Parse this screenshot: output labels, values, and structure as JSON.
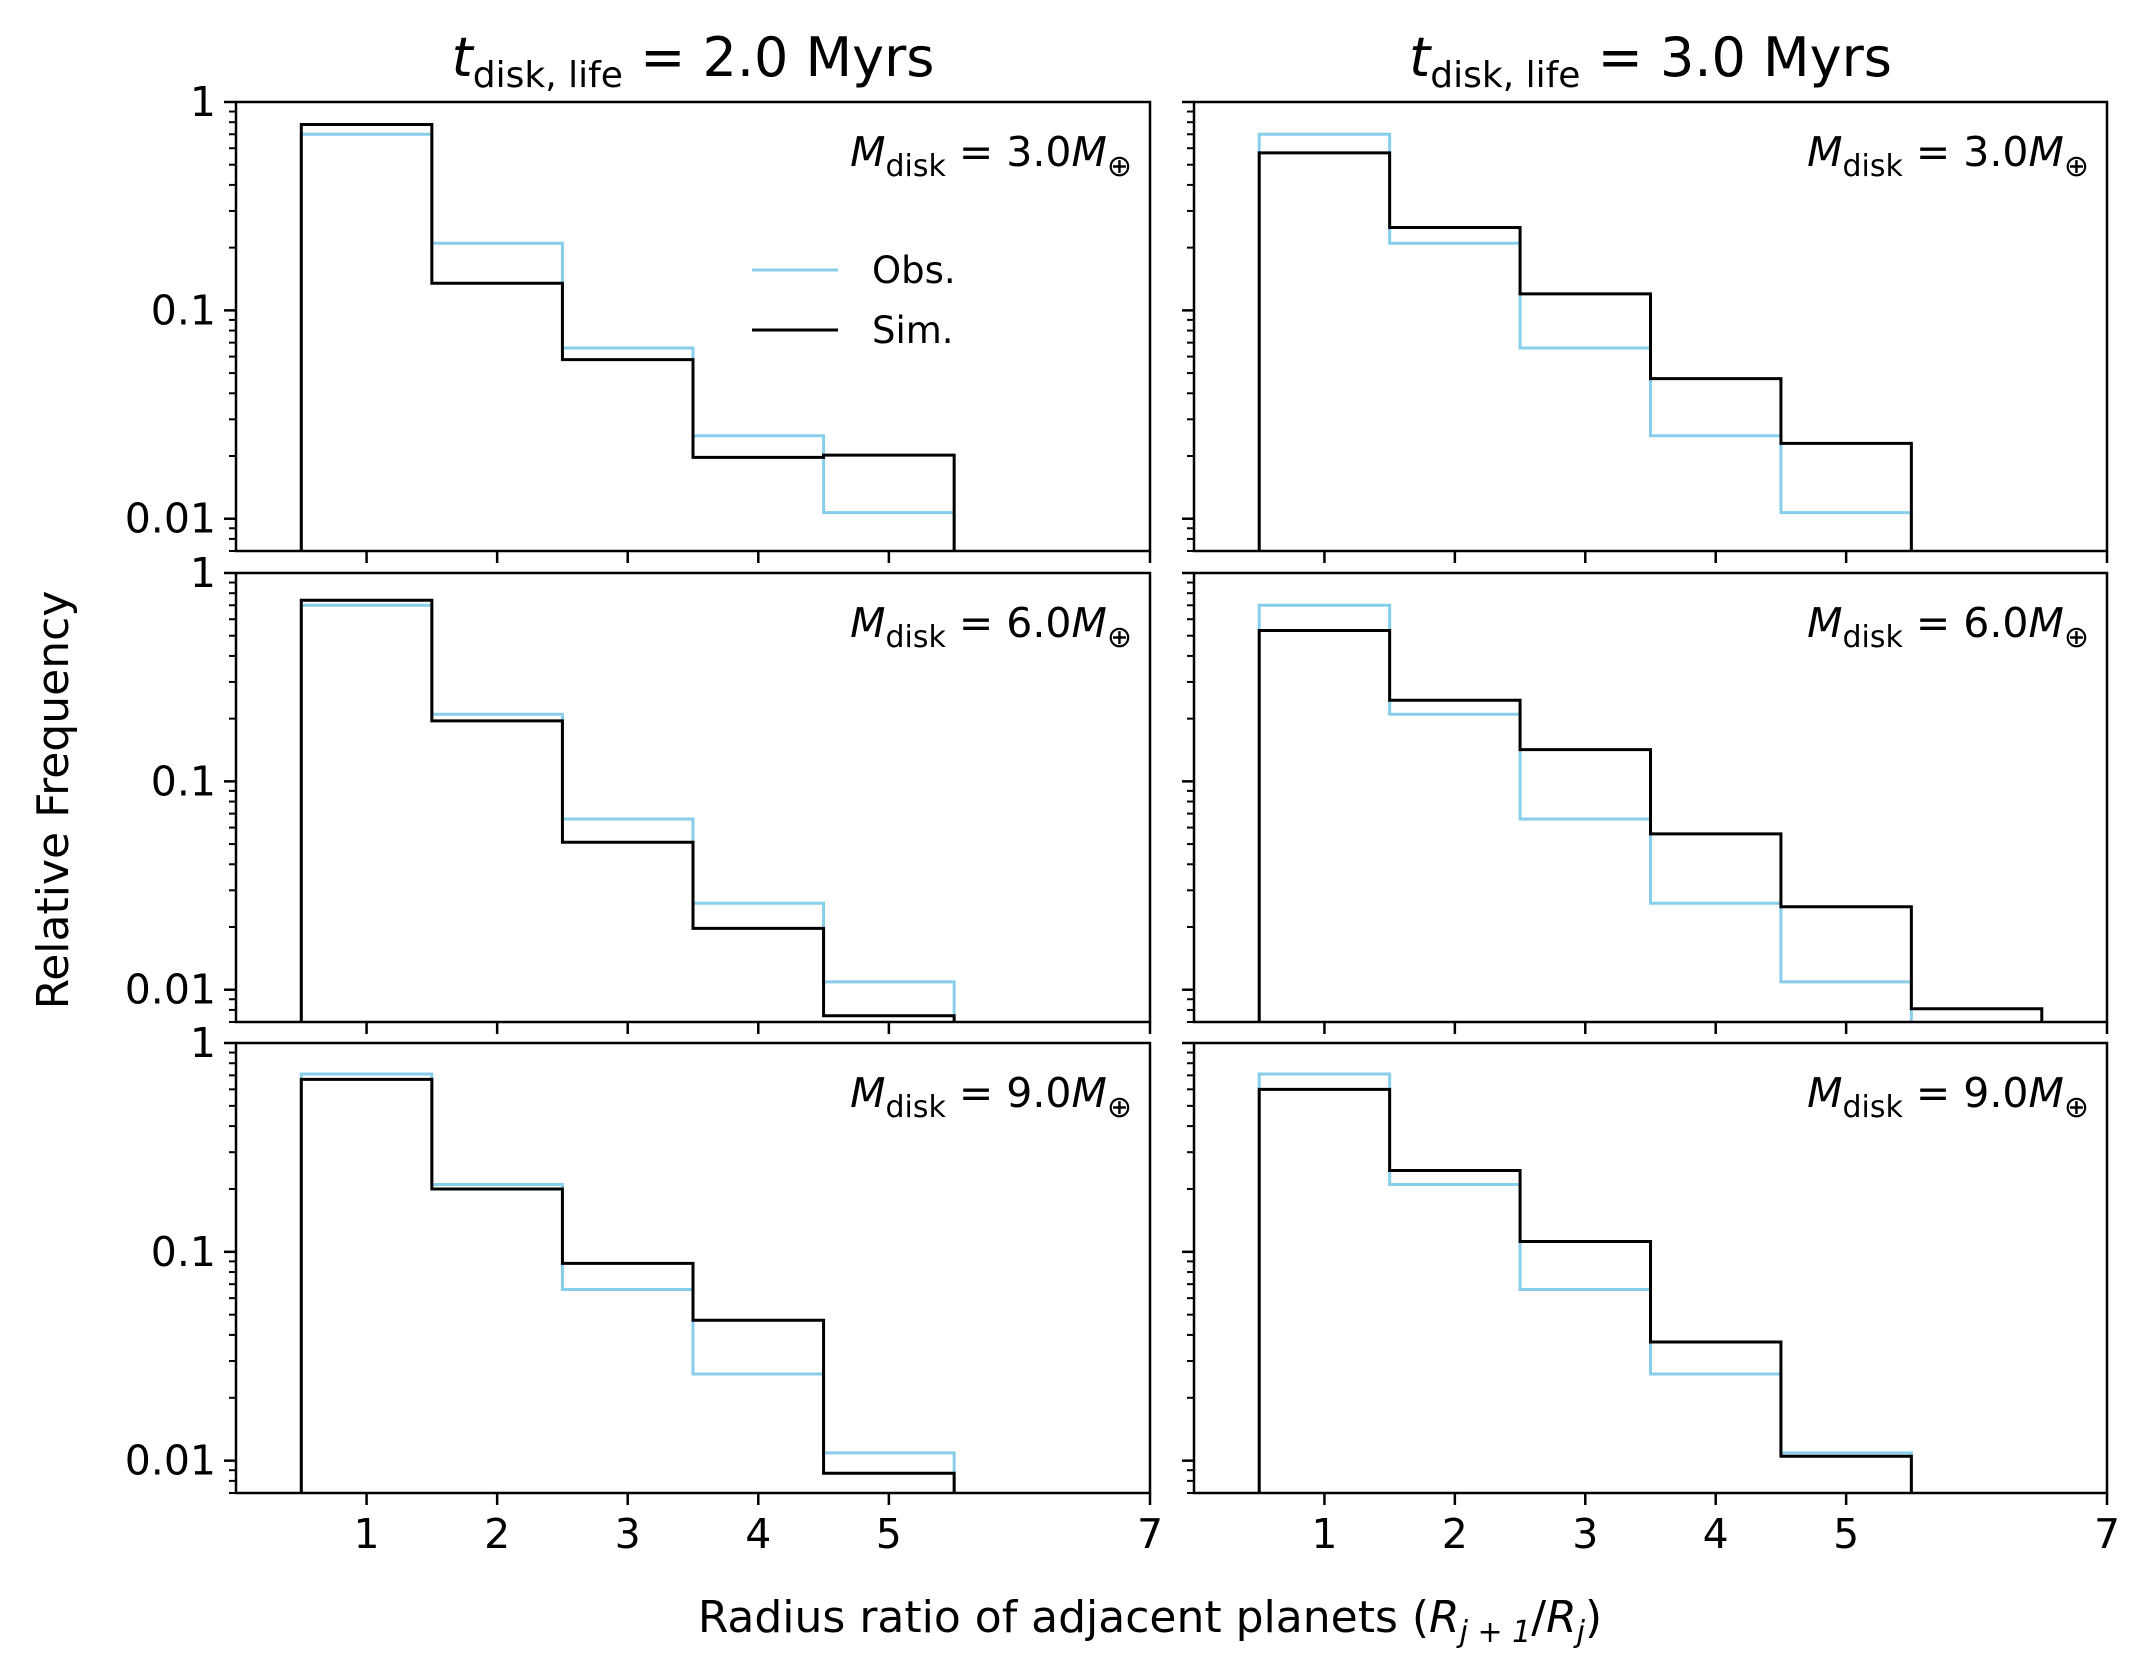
{
  "figure": {
    "x_label_text": "Radius ratio of adjacent planets (",
    "x_label_var_1": "R",
    "x_label_sub_1": "j + 1",
    "x_label_slash": "/",
    "x_label_var_2": "R",
    "x_label_sub_2": "j",
    "x_label_close": ")",
    "y_label": "Relative Frequency",
    "legend": {
      "obs": "Obs.",
      "sim": "Sim."
    },
    "colors": {
      "obs": "#87CEEB",
      "sim": "#000000",
      "axes": "#000000"
    }
  },
  "chart_data": [
    {
      "type": "histogram-step",
      "column": 0,
      "row": 0,
      "title_var": "t",
      "title_sub": "disk, life",
      "title_value": " = 2.0 Myrs",
      "label_var": "M",
      "label_sub": "disk",
      "label_value": " = 3.0",
      "label_unit_var": "M",
      "label_unit_sub": "⊕",
      "xlim": [
        0,
        7
      ],
      "ylim": [
        0.007,
        1
      ],
      "yscale": "log",
      "x_ticks": [
        "1",
        "2",
        "3",
        "4",
        "5",
        "7"
      ],
      "y_ticks": [
        "1",
        "0.1",
        "0.01"
      ],
      "bin_edges": [
        0.5,
        1.5,
        2.5,
        3.5,
        4.5,
        5.5
      ],
      "series": [
        {
          "name": "Obs.",
          "values": [
            0.7,
            0.21,
            0.066,
            0.025,
            0.0107
          ]
        },
        {
          "name": "Sim.",
          "values": [
            0.78,
            0.135,
            0.058,
            0.0197,
            0.0202
          ]
        }
      ],
      "legend": "inside upper-middle"
    },
    {
      "type": "histogram-step",
      "column": 1,
      "row": 0,
      "title_var": "t",
      "title_sub": "disk, life",
      "title_value": " = 3.0 Myrs",
      "label_var": "M",
      "label_sub": "disk",
      "label_value": " = 3.0",
      "label_unit_var": "M",
      "label_unit_sub": "⊕",
      "xlim": [
        0,
        7
      ],
      "ylim": [
        0.007,
        1
      ],
      "yscale": "log",
      "x_ticks": [
        "1",
        "2",
        "3",
        "4",
        "5",
        "7"
      ],
      "bin_edges": [
        0.5,
        1.5,
        2.5,
        3.5,
        4.5,
        5.5
      ],
      "series": [
        {
          "name": "Obs.",
          "values": [
            0.7,
            0.21,
            0.066,
            0.025,
            0.0107
          ]
        },
        {
          "name": "Sim.",
          "values": [
            0.57,
            0.25,
            0.12,
            0.047,
            0.023
          ]
        }
      ]
    },
    {
      "type": "histogram-step",
      "column": 0,
      "row": 1,
      "label_var": "M",
      "label_sub": "disk",
      "label_value": " = 6.0",
      "label_unit_var": "M",
      "label_unit_sub": "⊕",
      "xlim": [
        0,
        7
      ],
      "ylim": [
        0.007,
        1
      ],
      "yscale": "log",
      "x_ticks": [
        "1",
        "2",
        "3",
        "4",
        "5",
        "7"
      ],
      "y_ticks": [
        "1",
        "0.1",
        "0.01"
      ],
      "bin_edges": [
        0.5,
        1.5,
        2.5,
        3.5,
        4.5,
        5.5
      ],
      "series": [
        {
          "name": "Obs.",
          "values": [
            0.7,
            0.21,
            0.066,
            0.026,
            0.0109
          ]
        },
        {
          "name": "Sim.",
          "values": [
            0.74,
            0.195,
            0.051,
            0.0197,
            0.0075
          ]
        }
      ]
    },
    {
      "type": "histogram-step",
      "column": 1,
      "row": 1,
      "label_var": "M",
      "label_sub": "disk",
      "label_value": " = 6.0",
      "label_unit_var": "M",
      "label_unit_sub": "⊕",
      "xlim": [
        0,
        7
      ],
      "ylim": [
        0.007,
        1
      ],
      "yscale": "log",
      "x_ticks": [
        "1",
        "2",
        "3",
        "4",
        "5",
        "7"
      ],
      "bin_edges": [
        0.5,
        1.5,
        2.5,
        3.5,
        4.5,
        5.5,
        6.5
      ],
      "series": [
        {
          "name": "Obs.",
          "values": [
            0.7,
            0.21,
            0.066,
            0.026,
            0.0109
          ]
        },
        {
          "name": "Sim.",
          "values": [
            0.53,
            0.245,
            0.142,
            0.056,
            0.025,
            0.0081
          ]
        }
      ]
    },
    {
      "type": "histogram-step",
      "column": 0,
      "row": 2,
      "label_var": "M",
      "label_sub": "disk",
      "label_value": " = 9.0",
      "label_unit_var": "M",
      "label_unit_sub": "⊕",
      "xlim": [
        0,
        7
      ],
      "ylim": [
        0.007,
        1
      ],
      "yscale": "log",
      "x_ticks": [
        "1",
        "2",
        "3",
        "4",
        "5",
        "7"
      ],
      "y_ticks": [
        "1",
        "0.1",
        "0.01"
      ],
      "bin_edges": [
        0.5,
        1.5,
        2.5,
        3.5,
        4.5,
        5.5
      ],
      "series": [
        {
          "name": "Obs.",
          "values": [
            0.71,
            0.21,
            0.066,
            0.026,
            0.0109
          ]
        },
        {
          "name": "Sim.",
          "values": [
            0.67,
            0.2,
            0.088,
            0.047,
            0.0087
          ]
        }
      ]
    },
    {
      "type": "histogram-step",
      "column": 1,
      "row": 2,
      "label_var": "M",
      "label_sub": "disk",
      "label_value": " = 9.0",
      "label_unit_var": "M",
      "label_unit_sub": "⊕",
      "xlim": [
        0,
        7
      ],
      "ylim": [
        0.007,
        1
      ],
      "yscale": "log",
      "x_ticks": [
        "1",
        "2",
        "3",
        "4",
        "5",
        "7"
      ],
      "bin_edges": [
        0.5,
        1.5,
        2.5,
        3.5,
        4.5,
        5.5
      ],
      "series": [
        {
          "name": "Obs.",
          "values": [
            0.71,
            0.21,
            0.066,
            0.026,
            0.0109
          ]
        },
        {
          "name": "Sim.",
          "values": [
            0.6,
            0.245,
            0.112,
            0.037,
            0.0105
          ]
        }
      ]
    }
  ]
}
